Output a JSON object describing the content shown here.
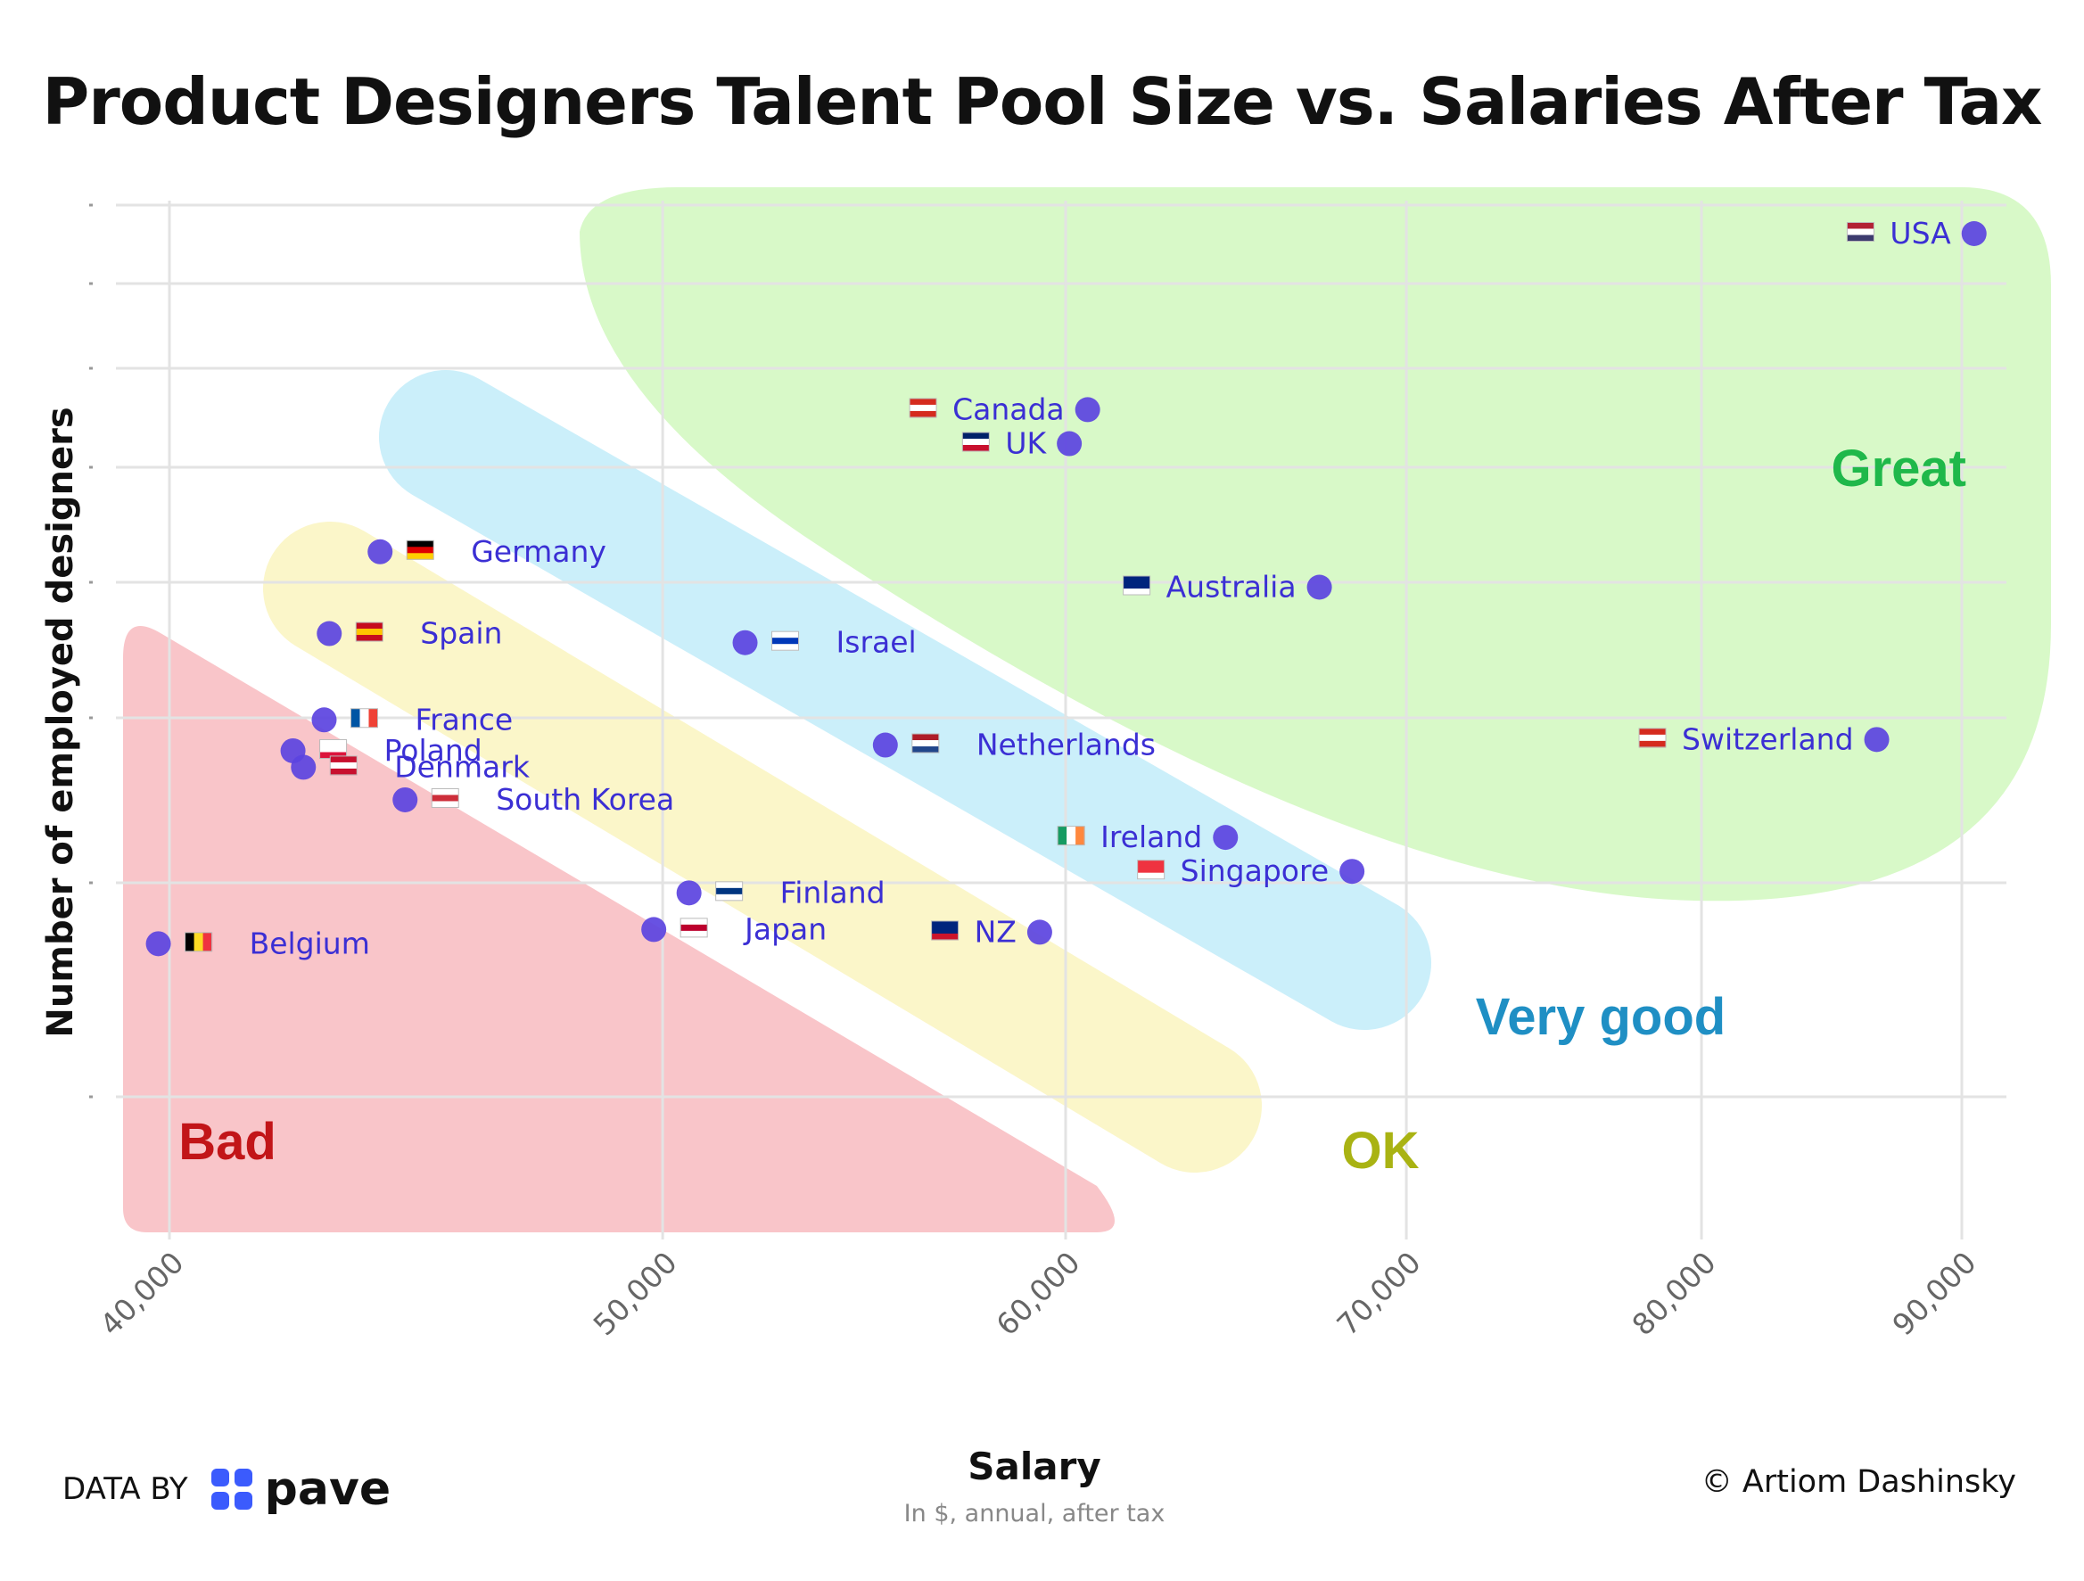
{
  "title": "Product Designers Talent Pool Size vs. Salaries After Tax",
  "footer": {
    "data_by": "DATA BY",
    "brand": "pave",
    "brand_color": "#3b5bfd",
    "credit": "© Artiom Dashinsky"
  },
  "chart_data": {
    "type": "scatter",
    "title": "Product Designers Talent Pool Size vs. Salaries After Tax",
    "xlabel": "Salary",
    "xlabel_sub": "In $, annual, after tax",
    "ylabel": "Number of employed designers",
    "x_scale": "log",
    "xlim": [
      39000,
      92000
    ],
    "x_ticks": [
      {
        "value": 40000,
        "label": "40,000"
      },
      {
        "value": 50000,
        "label": "50,000"
      },
      {
        "value": 60000,
        "label": "60,000"
      },
      {
        "value": 70000,
        "label": "70,000"
      },
      {
        "value": 80000,
        "label": "80,000"
      },
      {
        "value": 90000,
        "label": "90,000"
      }
    ],
    "y_scale": "log",
    "ylim": [
      1500,
      1000000
    ],
    "y_tick_labels_visible": false,
    "grid": true,
    "point_color": "#5b43e0",
    "label_color": "#3b2fd4",
    "points": [
      {
        "name": "USA",
        "x": 90500,
        "y": 800000,
        "flag": "us-flag-icon"
      },
      {
        "name": "Canada",
        "x": 60600,
        "y": 180000,
        "flag": "ca-flag-icon"
      },
      {
        "name": "UK",
        "x": 60100,
        "y": 135000,
        "flag": "gb-flag-icon"
      },
      {
        "name": "Australia",
        "x": 67300,
        "y": 40000,
        "flag": "au-flag-icon"
      },
      {
        "name": "Germany",
        "x": 44000,
        "y": 54000,
        "flag": "de-flag-icon"
      },
      {
        "name": "Israel",
        "x": 51900,
        "y": 25000,
        "flag": "il-flag-icon"
      },
      {
        "name": "Spain",
        "x": 43000,
        "y": 27000,
        "flag": "es-flag-icon"
      },
      {
        "name": "France",
        "x": 42900,
        "y": 13000,
        "flag": "fr-flag-icon"
      },
      {
        "name": "Netherlands",
        "x": 55300,
        "y": 10500,
        "flag": "nl-flag-icon"
      },
      {
        "name": "Switzerland",
        "x": 86600,
        "y": 11000,
        "flag": "ch-flag-icon"
      },
      {
        "name": "Poland",
        "x": 42300,
        "y": 10000,
        "flag": "pl-flag-icon"
      },
      {
        "name": "Denmark",
        "x": 42500,
        "y": 8700,
        "flag": "dk-flag-icon"
      },
      {
        "name": "South Korea",
        "x": 44500,
        "y": 6600,
        "flag": "kr-flag-icon"
      },
      {
        "name": "Ireland",
        "x": 64500,
        "y": 4800,
        "flag": "ie-flag-icon"
      },
      {
        "name": "Singapore",
        "x": 68300,
        "y": 3600,
        "flag": "sg-flag-icon"
      },
      {
        "name": "Finland",
        "x": 50600,
        "y": 3000,
        "flag": "fi-flag-icon"
      },
      {
        "name": "Japan",
        "x": 49800,
        "y": 2200,
        "flag": "jp-flag-icon"
      },
      {
        "name": "NZ",
        "x": 59300,
        "y": 2150,
        "flag": "nz-flag-icon"
      },
      {
        "name": "Belgium",
        "x": 39800,
        "y": 1950,
        "flag": "be-flag-icon"
      }
    ],
    "regions": [
      {
        "label": "Great",
        "fill": "#d8f9c8",
        "label_color": "#1fb84a"
      },
      {
        "label": "Very good",
        "fill": "#cbeffa",
        "label_color": "#1f8fc4"
      },
      {
        "label": "OK",
        "fill": "#fbf6c9",
        "label_color": "#a9b313"
      },
      {
        "label": "Bad",
        "fill": "#f9c5c9",
        "label_color": "#c21518"
      }
    ]
  }
}
